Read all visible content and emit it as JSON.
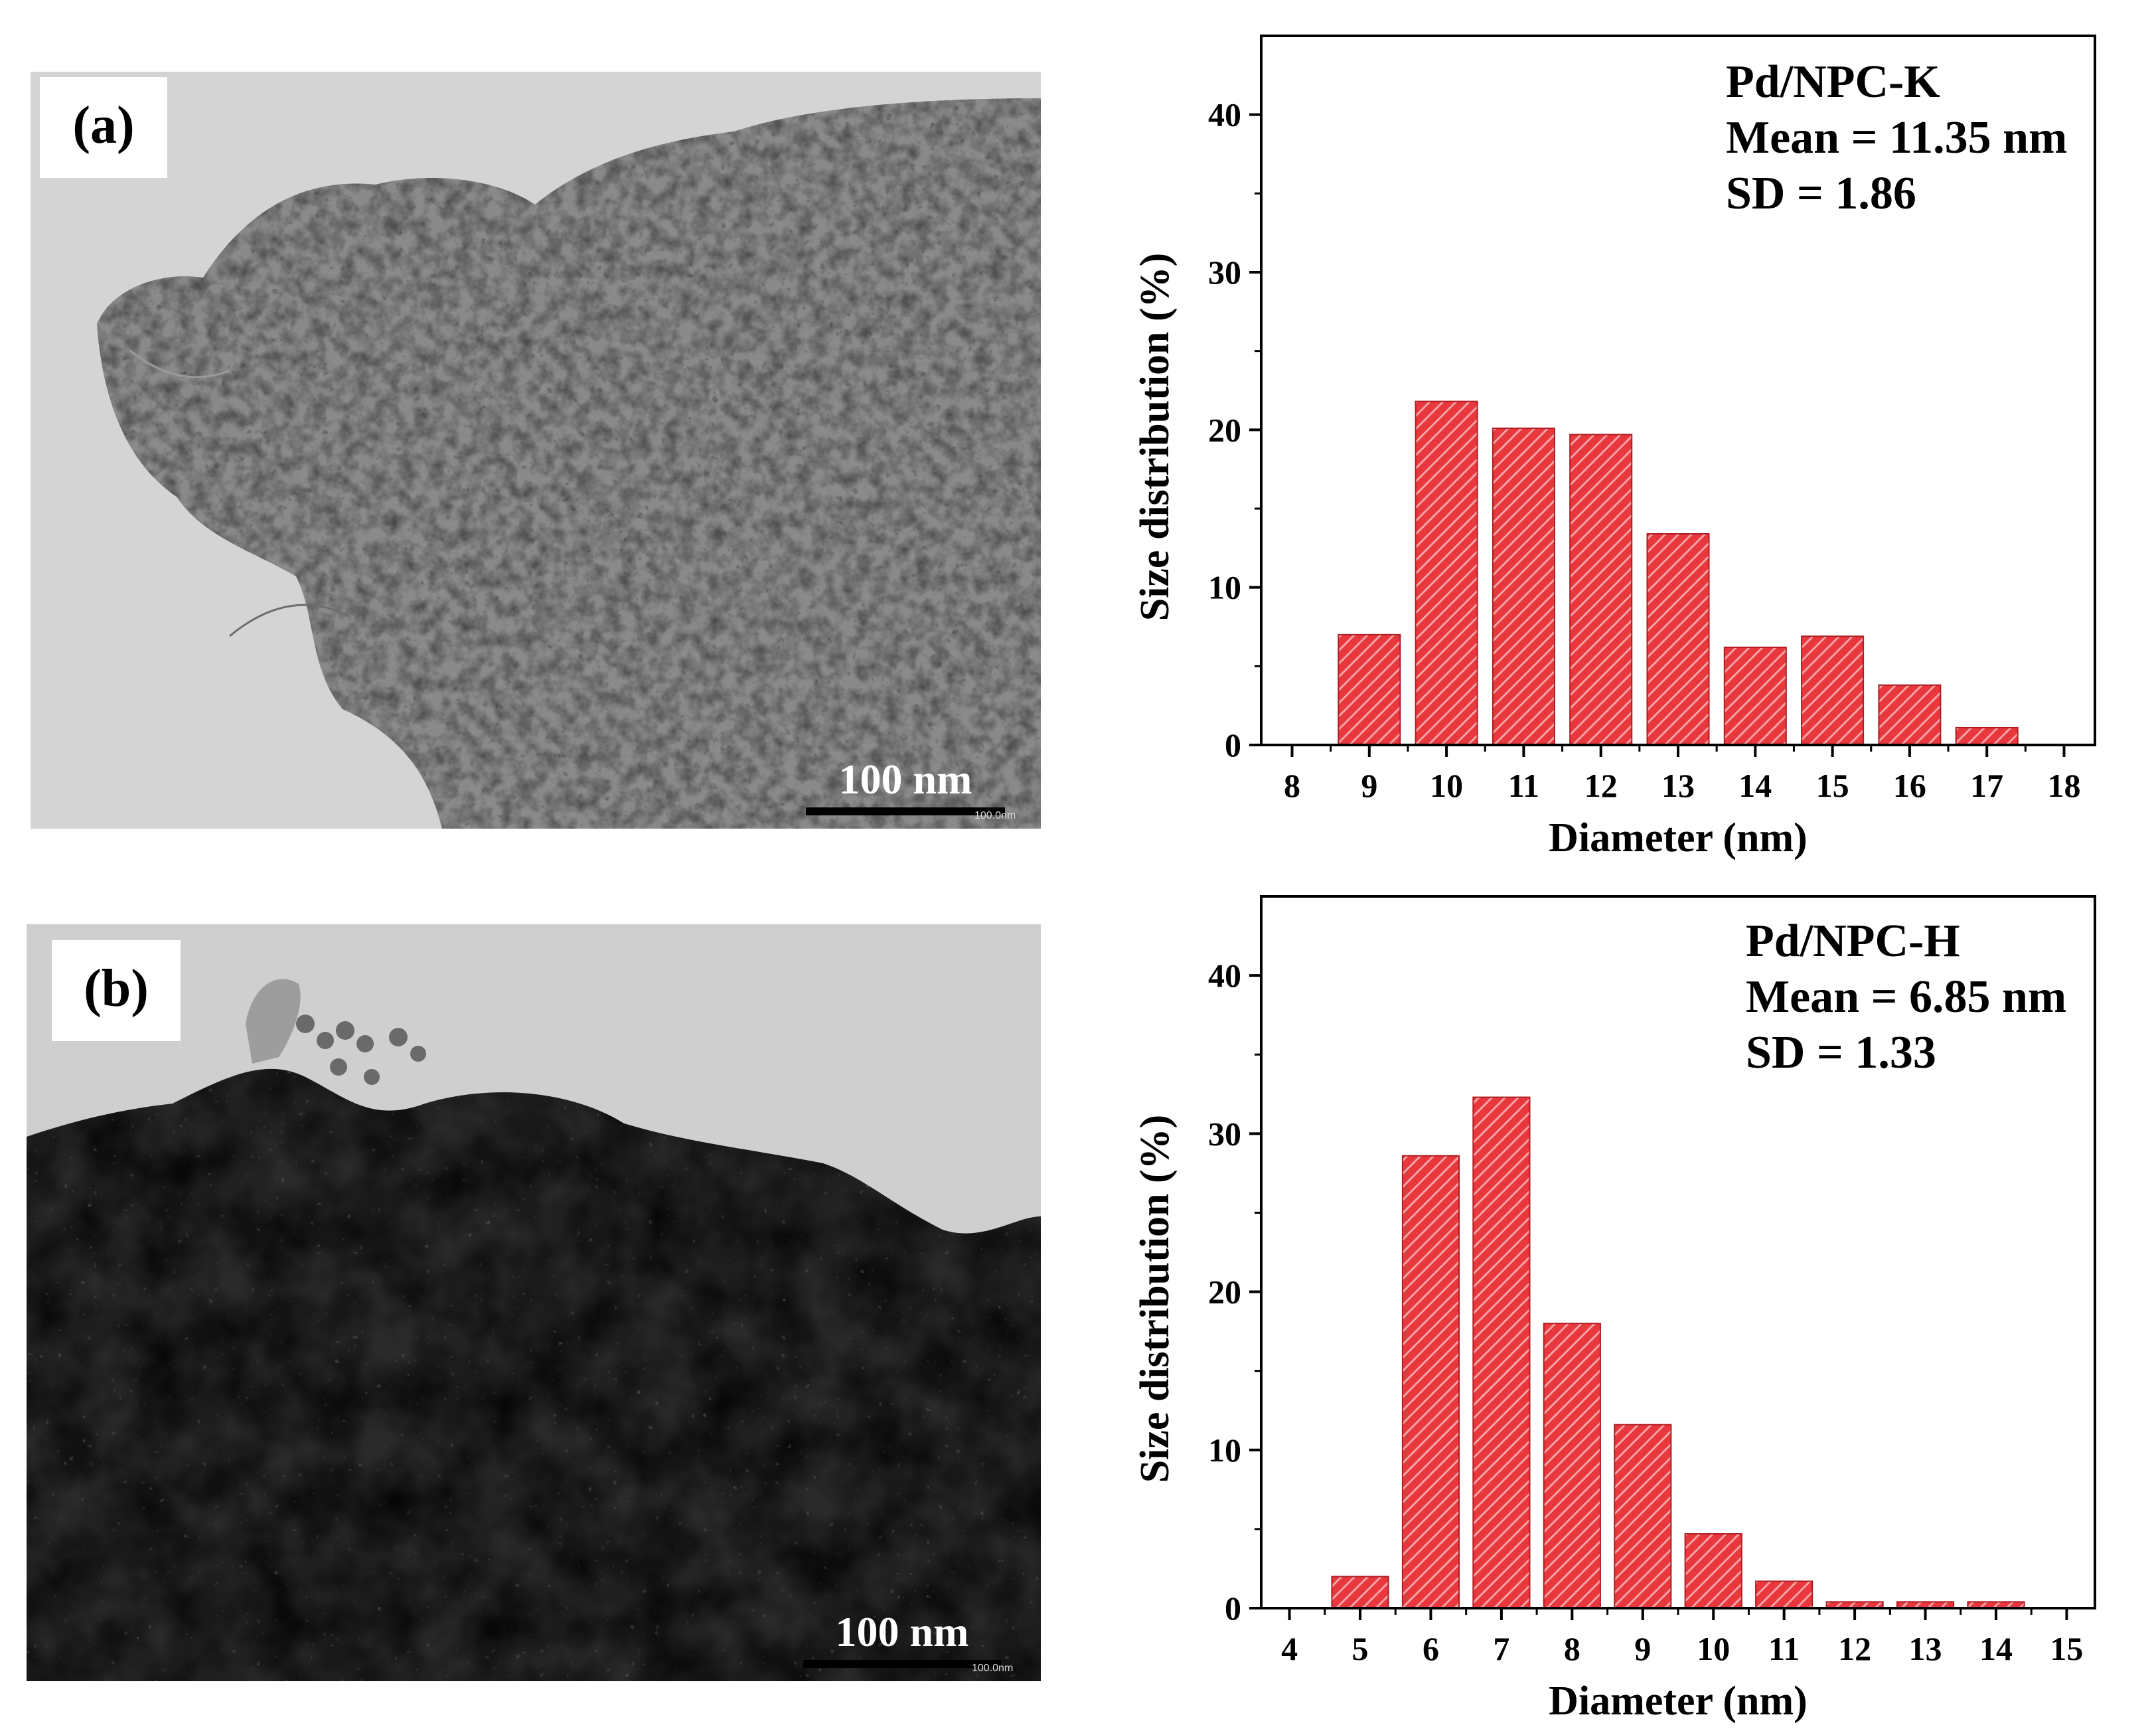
{
  "panel_a": {
    "label": "(a)",
    "scale_bar_text": "100 nm",
    "scale_bar_small_text": "100.0nm"
  },
  "panel_b": {
    "label": "(b)",
    "scale_bar_text": "100 nm",
    "scale_bar_small_text": "100.0nm"
  },
  "colors": {
    "bar_fill": "#e8383d",
    "bar_hatch": "#f6a3a5",
    "axis": "#000000"
  },
  "chart_data": [
    {
      "type": "bar",
      "title": "",
      "annotation": [
        "Pd/NPC-K",
        "Mean = 11.35 nm",
        "SD = 1.86"
      ],
      "xlabel": "Diameter (nm)",
      "ylabel": "Size distribution (%)",
      "xlim": [
        7.6,
        18.4
      ],
      "ylim": [
        0,
        45
      ],
      "xticks": [
        8,
        9,
        10,
        11,
        12,
        13,
        14,
        15,
        16,
        17,
        18
      ],
      "yticks": [
        0,
        10,
        20,
        30,
        40
      ],
      "x": [
        9,
        10,
        11,
        12,
        13,
        14,
        15,
        16,
        17
      ],
      "values": [
        7.0,
        21.8,
        20.1,
        19.7,
        13.4,
        6.2,
        6.9,
        3.8,
        1.1
      ],
      "bar_width": 0.8
    },
    {
      "type": "bar",
      "title": "",
      "annotation": [
        "Pd/NPC-H",
        "Mean = 6.85 nm",
        "SD = 1.33"
      ],
      "xlabel": "Diameter (nm)",
      "ylabel": "Size distribution (%)",
      "xlim": [
        3.6,
        15.4
      ],
      "ylim": [
        0,
        45
      ],
      "xticks": [
        4,
        5,
        6,
        7,
        8,
        9,
        10,
        11,
        12,
        13,
        14,
        15
      ],
      "yticks": [
        0,
        10,
        20,
        30,
        40
      ],
      "x": [
        5,
        6,
        7,
        8,
        9,
        10,
        11,
        12,
        13,
        14
      ],
      "values": [
        2.0,
        28.6,
        32.3,
        18.0,
        11.6,
        4.7,
        1.7,
        0.4,
        0.4,
        0.4
      ],
      "bar_width": 0.8
    }
  ]
}
